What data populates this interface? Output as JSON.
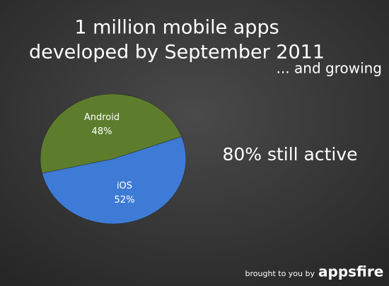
{
  "chart_data": {
    "type": "pie",
    "title": [
      "1 million mobile apps",
      "developed by September 2011"
    ],
    "subtitle": "... and growing",
    "annotation": "80% still active",
    "categories": [
      "Android",
      "iOS"
    ],
    "values": [
      48,
      52
    ],
    "value_labels": [
      "48%",
      "52%"
    ],
    "colors": [
      "#5d7d2c",
      "#3e7bd6"
    ],
    "footer": {
      "text": "brought to you by",
      "brand": "appsfire"
    }
  }
}
